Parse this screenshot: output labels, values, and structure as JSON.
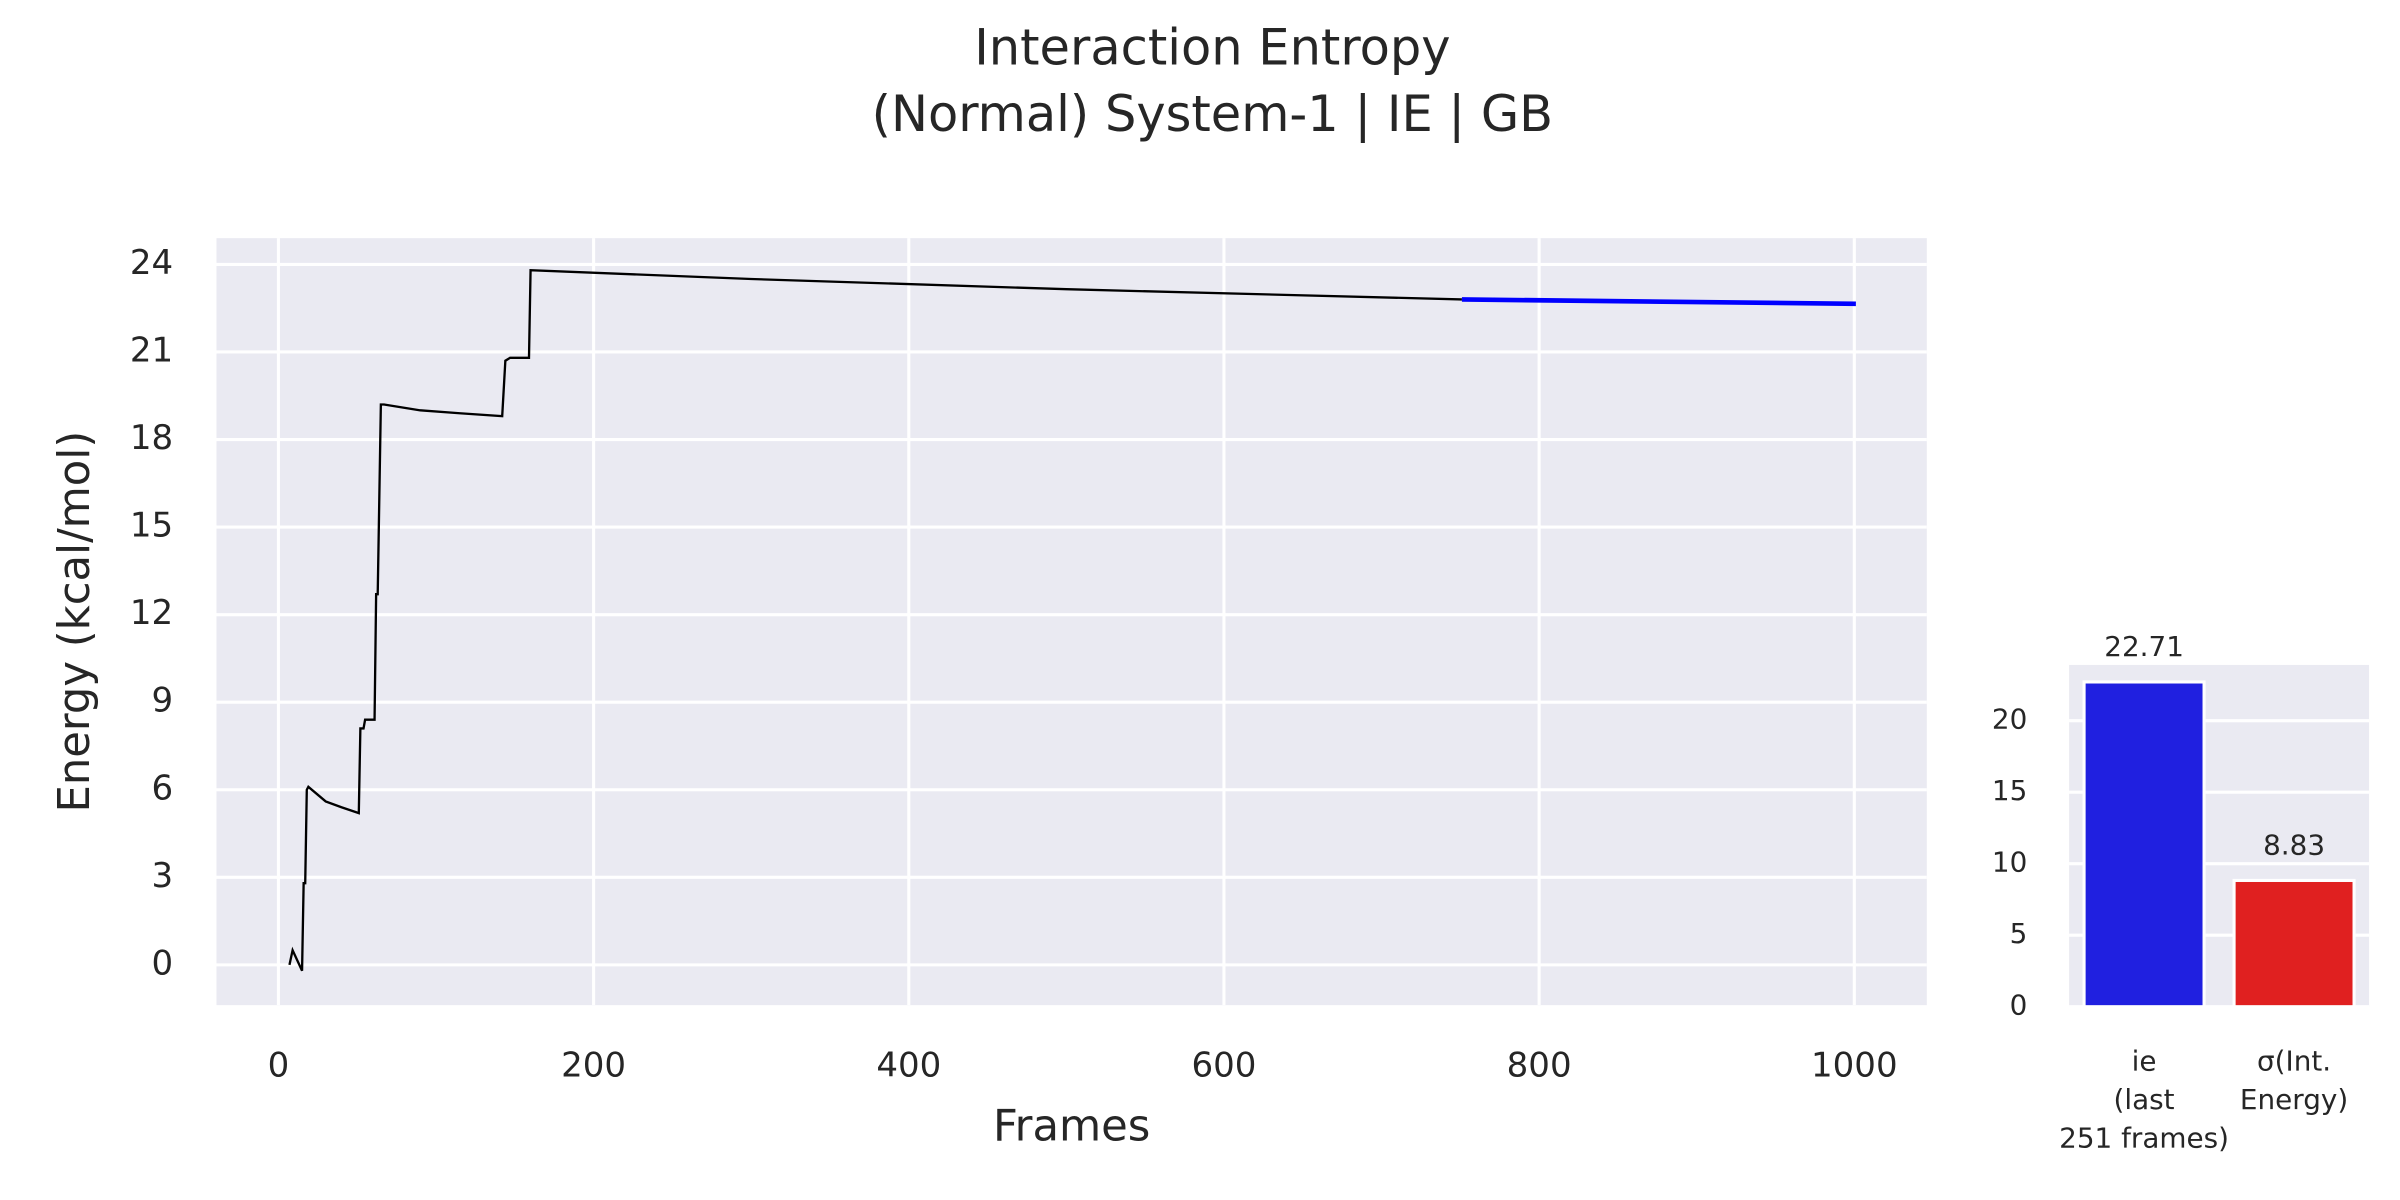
{
  "title": [
    "Interaction Entropy",
    "(Normal) System-1 | IE | GB"
  ],
  "chart_data": [
    {
      "type": "line",
      "xlabel": "Frames",
      "ylabel": "Energy (kcal/mol)",
      "xlim": [
        -39.3,
        1046
      ],
      "ylim": [
        -1.38,
        24.9
      ],
      "xticks": [
        0,
        200,
        400,
        600,
        800,
        1000
      ],
      "yticks": [
        0,
        3,
        6,
        9,
        12,
        15,
        18,
        21,
        24
      ],
      "grid": true,
      "series": [
        {
          "color": "#000000",
          "x": [
            7,
            9,
            15,
            16,
            17,
            18,
            19,
            30,
            40,
            51,
            52,
            54,
            55,
            61,
            62,
            63,
            65,
            67,
            90,
            115,
            142,
            144,
            147,
            159,
            160,
            300,
            500,
            751
          ],
          "values": [
            0,
            0.5,
            -0.2,
            2.8,
            2.8,
            6.0,
            6.1,
            5.6,
            5.4,
            5.2,
            8.1,
            8.1,
            8.4,
            8.4,
            12.7,
            12.7,
            19.2,
            19.2,
            19.0,
            18.9,
            18.8,
            20.7,
            20.8,
            20.8,
            23.8,
            23.5,
            23.15,
            22.8
          ]
        },
        {
          "color": "#0000ff",
          "x": [
            751,
            1001
          ],
          "values": [
            22.8,
            22.65
          ]
        }
      ]
    },
    {
      "type": "bar",
      "categories": [
        [
          "ie",
          "(last",
          "251 frames)"
        ],
        [
          "σ(Int.",
          "Energy)"
        ]
      ],
      "values": [
        22.71,
        8.83
      ],
      "colors": [
        "#2020e0",
        "#e02020"
      ],
      "ylim": [
        0,
        23.9
      ],
      "yticks": [
        0,
        5,
        10,
        15,
        20
      ],
      "grid": true
    }
  ]
}
